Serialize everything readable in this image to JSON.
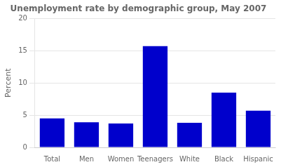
{
  "chart_data": {
    "type": "bar",
    "title": "Unemployment rate by demographic group, May 2007",
    "categories": [
      "Total",
      "Men",
      "Women",
      "Teenagers",
      "White",
      "Black",
      "Hispanic"
    ],
    "values": [
      4.5,
      3.9,
      3.7,
      15.7,
      3.8,
      8.5,
      5.7
    ],
    "color": "#0000cc",
    "ylabel": "Percent",
    "ylim": [
      0,
      20
    ],
    "yticks": [
      0,
      5,
      10,
      15,
      20
    ],
    "grid": true
  }
}
